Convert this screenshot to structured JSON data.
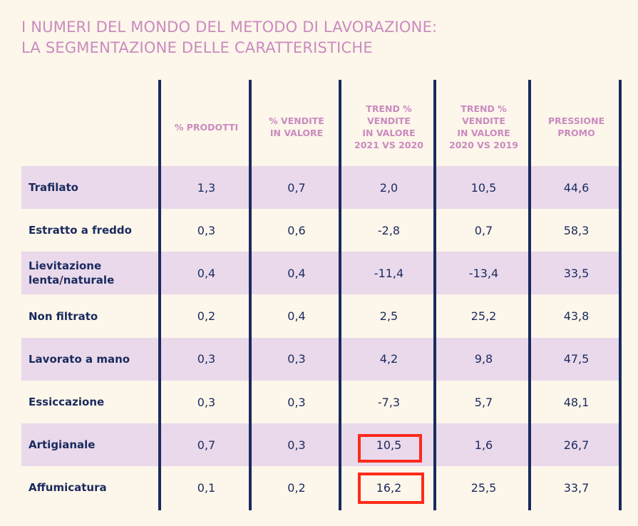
{
  "title": {
    "line1": "I NUMERI DEL MONDO DEL METODO DI LAVORAZIONE:",
    "line2": "LA SEGMENTAZIONE DELLE CARATTERISTICHE"
  },
  "colors": {
    "accent": "#c98bbf",
    "text": "#1a2a5e",
    "stripe": "#e9d9eb",
    "background": "#fdf6ea",
    "highlight": "#ff2a1a"
  },
  "headers": [
    [
      "% PRODOTTI"
    ],
    [
      "% VENDITE",
      "IN VALORE"
    ],
    [
      "TREND %",
      "VENDITE",
      "IN VALORE",
      "2021 VS 2020"
    ],
    [
      "TREND %",
      "VENDITE",
      "IN VALORE",
      "2020 VS 2019"
    ],
    [
      "PRESSIONE",
      "PROMO"
    ]
  ],
  "rows": [
    {
      "label": [
        "Trafilato"
      ],
      "values": [
        "1,3",
        "0,7",
        "2,0",
        "10,5",
        "44,6"
      ]
    },
    {
      "label": [
        "Estratto a freddo"
      ],
      "values": [
        "0,3",
        "0,6",
        "-2,8",
        "0,7",
        "58,3"
      ]
    },
    {
      "label": [
        "Lievitazione",
        "lenta/naturale"
      ],
      "values": [
        "0,4",
        "0,4",
        "-11,4",
        "-13,4",
        "33,5"
      ]
    },
    {
      "label": [
        "Non filtrato"
      ],
      "values": [
        "0,2",
        "0,4",
        "2,5",
        "25,2",
        "43,8"
      ]
    },
    {
      "label": [
        "Lavorato a mano"
      ],
      "values": [
        "0,3",
        "0,3",
        "4,2",
        "9,8",
        "47,5"
      ]
    },
    {
      "label": [
        "Essiccazione"
      ],
      "values": [
        "0,3",
        "0,3",
        "-7,3",
        "5,7",
        "48,1"
      ]
    },
    {
      "label": [
        "Artigianale"
      ],
      "values": [
        "0,7",
        "0,3",
        "10,5",
        "1,6",
        "26,7"
      ]
    },
    {
      "label": [
        "Affumicatura"
      ],
      "values": [
        "0,1",
        "0,2",
        "16,2",
        "25,5",
        "33,7"
      ]
    }
  ]
}
